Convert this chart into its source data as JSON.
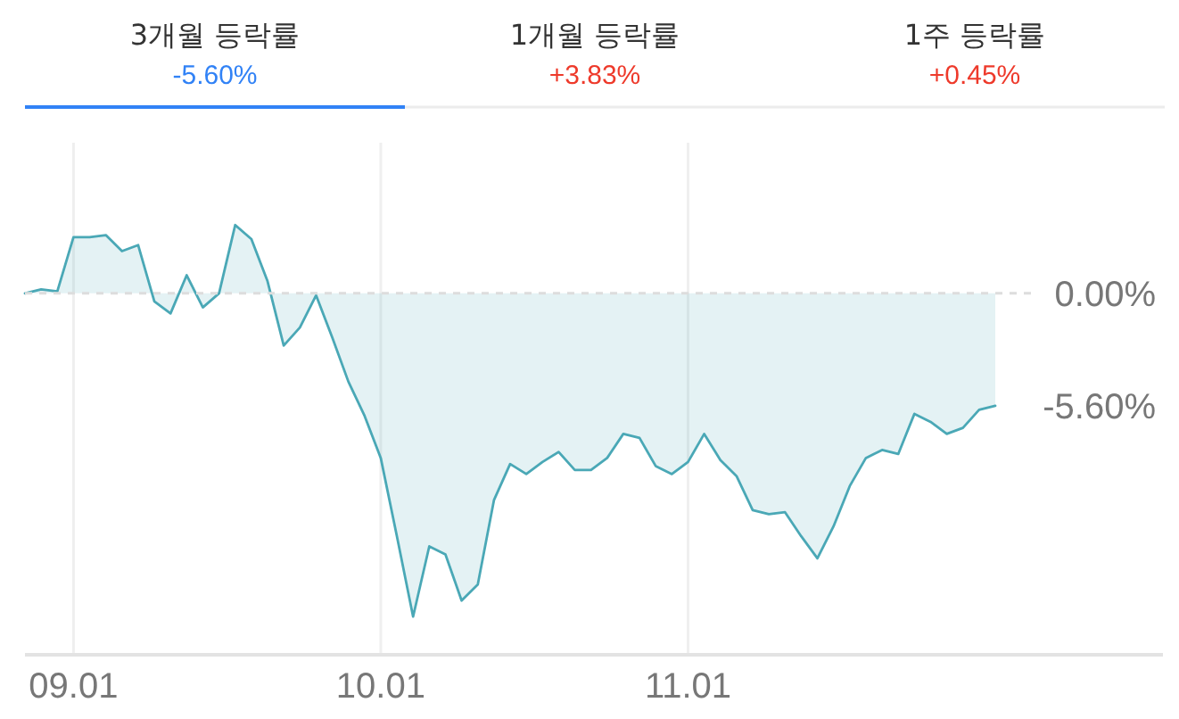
{
  "chart_data": [
    {
      "type": "other",
      "categories": [
        "3개월 등락률",
        "1개월 등락률",
        "1주 등락률"
      ],
      "value_labels": [
        "-5.60%",
        "+3.83%",
        "+0.45%"
      ],
      "colors": [
        "#3182f6",
        "#ee3a2b",
        "#ee3a2b"
      ]
    },
    {
      "type": "area",
      "categories": [
        null,
        null,
        null,
        "09.01",
        null,
        null,
        null,
        null,
        null,
        null,
        null,
        null,
        null,
        null,
        null,
        null,
        null,
        null,
        null,
        null,
        null,
        null,
        "10.01",
        null,
        null,
        null,
        null,
        null,
        null,
        null,
        null,
        null,
        null,
        null,
        null,
        null,
        null,
        null,
        null,
        null,
        null,
        "11.01",
        null,
        null,
        null,
        null,
        null,
        null,
        null,
        null,
        null,
        null,
        null,
        null,
        null,
        null,
        null,
        null,
        null,
        null,
        null
      ],
      "values": [
        0.0,
        0.2,
        0.1,
        2.8,
        2.8,
        2.9,
        2.1,
        2.4,
        -0.4,
        -1.0,
        0.9,
        -0.7,
        0.0,
        3.4,
        2.7,
        0.6,
        -2.6,
        -1.7,
        -0.1,
        -2.2,
        -4.4,
        -6.1,
        -8.2,
        -12.1,
        -16.1,
        -12.6,
        -13.0,
        -15.3,
        -14.5,
        -10.3,
        -8.5,
        -9.0,
        -8.4,
        -7.9,
        -8.8,
        -8.8,
        -8.2,
        -7.0,
        -7.2,
        -8.6,
        -9.0,
        -8.4,
        -7.0,
        -8.3,
        -9.1,
        -10.8,
        -11.0,
        -10.9,
        -12.1,
        -13.2,
        -11.6,
        -9.6,
        -8.2,
        -7.8,
        -8.0,
        -6.0,
        -6.4,
        -7.0,
        -6.7,
        -5.8,
        -5.6
      ],
      "color": "#4aa8b6",
      "ylim": [
        -18,
        7.5
      ],
      "yticks": [
        {
          "value": 0,
          "label": "0.00%"
        },
        {
          "value": -5.6,
          "label": "-5.60%"
        }
      ],
      "grid": "x",
      "ref_lines": [
        {
          "axis": "y",
          "value": 0,
          "line_style": "dashed",
          "color": "#dddddd"
        }
      ]
    }
  ]
}
